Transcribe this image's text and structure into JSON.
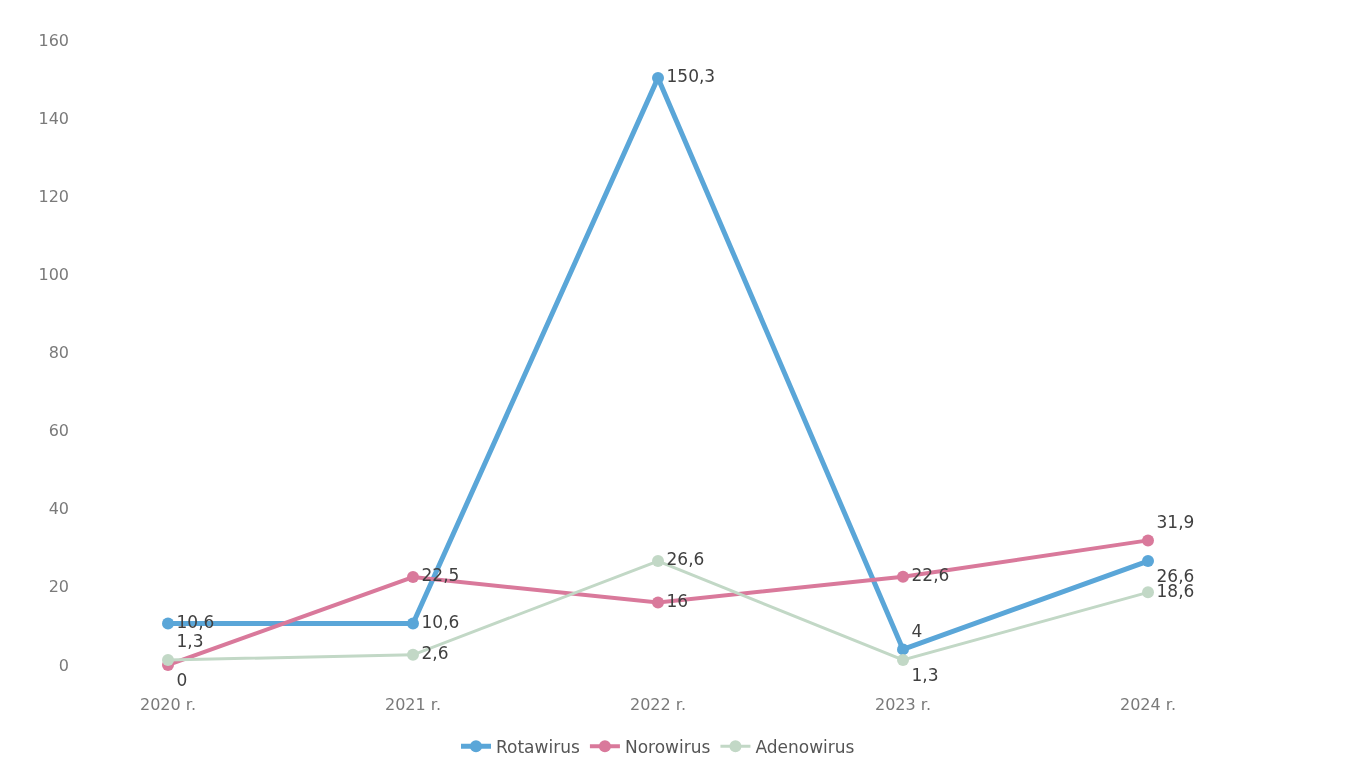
{
  "chart_data": {
    "type": "line",
    "categories": [
      "2020 r.",
      "2021 r.",
      "2022 r.",
      "2023 r.",
      "2024 r."
    ],
    "series": [
      {
        "name": "Rotawirus",
        "color": "#5aa6d8",
        "values": [
          10.6,
          10.6,
          150.3,
          4,
          26.6
        ],
        "value_labels": [
          "10,6",
          "10,6",
          "150,3",
          "4",
          "26,6"
        ]
      },
      {
        "name": "Norowirus",
        "color": "#d9799b",
        "values": [
          0,
          22.5,
          16,
          22.6,
          31.9
        ],
        "value_labels": [
          "0",
          "22,5",
          "16",
          "22,6",
          "31,9"
        ]
      },
      {
        "name": "Adenowirus",
        "color": "#c2d8c6",
        "values": [
          1.3,
          2.6,
          26.6,
          1.3,
          18.6
        ],
        "value_labels": [
          "1,3",
          "2,6",
          "26,6",
          "1,3",
          "18,6"
        ]
      }
    ],
    "ylim": [
      0,
      160
    ],
    "yticks": [
      0,
      20,
      40,
      60,
      80,
      100,
      120,
      140,
      160
    ],
    "grid": false,
    "legend": "bottom",
    "marker": "circle",
    "line_style": "solid"
  }
}
